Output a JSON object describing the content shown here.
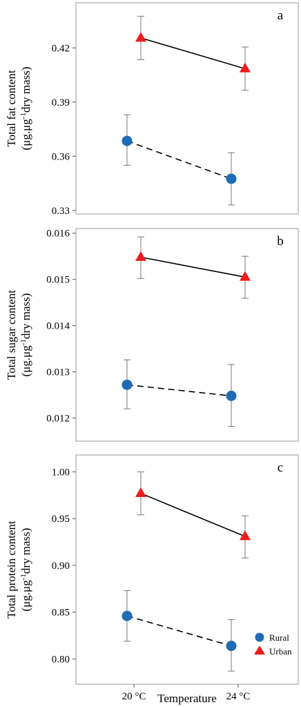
{
  "chart_data": [
    {
      "type": "line",
      "panel_label": "a",
      "ylabel_line1": "Total fat content",
      "ylabel_line2_parts": [
        "(μg.μg",
        "-1",
        "dry mass)"
      ],
      "ylim": [
        0.328,
        0.445
      ],
      "yticks": [
        0.33,
        0.36,
        0.39,
        0.42
      ],
      "ytick_labels": [
        "0.33",
        "0.36",
        "0.39",
        "0.42"
      ],
      "categories": [
        "20 °C",
        "24 °C"
      ],
      "series": [
        {
          "name": "Rural",
          "marker": "circle",
          "color": "#1f6bb5",
          "line": "dashed",
          "values": [
            0.3685,
            0.3475
          ],
          "err_low": [
            0.355,
            0.333
          ],
          "err_high": [
            0.383,
            0.362
          ]
        },
        {
          "name": "Urban",
          "marker": "triangle",
          "color": "#ee1c1c",
          "line": "solid",
          "values": [
            0.4255,
            0.4085
          ],
          "err_low": [
            0.4135,
            0.3965
          ],
          "err_high": [
            0.4375,
            0.4205
          ]
        }
      ]
    },
    {
      "type": "line",
      "panel_label": "b",
      "ylabel_line1": "Total sugar content",
      "ylabel_line2_parts": [
        "(μg.μg",
        "-1",
        "dry mass)"
      ],
      "ylim": [
        0.0115,
        0.0161
      ],
      "yticks": [
        0.012,
        0.013,
        0.014,
        0.015,
        0.016
      ],
      "ytick_labels": [
        "0.012",
        "0.013",
        "0.014",
        "0.015",
        "0.016"
      ],
      "categories": [
        "20 °C",
        "24 °C"
      ],
      "series": [
        {
          "name": "Rural",
          "marker": "circle",
          "color": "#1f6bb5",
          "line": "dashed",
          "values": [
            0.01272,
            0.01248
          ],
          "err_low": [
            0.0122,
            0.01182
          ],
          "err_high": [
            0.01326,
            0.01316
          ]
        },
        {
          "name": "Urban",
          "marker": "triangle",
          "color": "#ee1c1c",
          "line": "solid",
          "values": [
            0.01548,
            0.01505
          ],
          "err_low": [
            0.01502,
            0.01459
          ],
          "err_high": [
            0.01592,
            0.0155
          ]
        }
      ]
    },
    {
      "type": "line",
      "panel_label": "c",
      "ylabel_line1": "Total protein content",
      "ylabel_line2_parts": [
        "(μg.μg",
        "-1",
        "dry mass)"
      ],
      "ylim": [
        0.773,
        1.018
      ],
      "yticks": [
        0.8,
        0.85,
        0.9,
        0.95,
        1.0
      ],
      "ytick_labels": [
        "0.80",
        "0.85",
        "0.90",
        "0.95",
        "1.00"
      ],
      "categories": [
        "20 °C",
        "24 °C"
      ],
      "xlabel": "Temperature",
      "legend_position": "bottom-right",
      "series": [
        {
          "name": "Rural",
          "marker": "circle",
          "color": "#1f6bb5",
          "line": "dashed",
          "values": [
            0.846,
            0.814
          ],
          "err_low": [
            0.819,
            0.787
          ],
          "err_high": [
            0.873,
            0.842
          ]
        },
        {
          "name": "Urban",
          "marker": "triangle",
          "color": "#ee1c1c",
          "line": "solid",
          "values": [
            0.977,
            0.931
          ],
          "err_low": [
            0.954,
            0.908
          ],
          "err_high": [
            1.0,
            0.953
          ]
        }
      ]
    }
  ]
}
